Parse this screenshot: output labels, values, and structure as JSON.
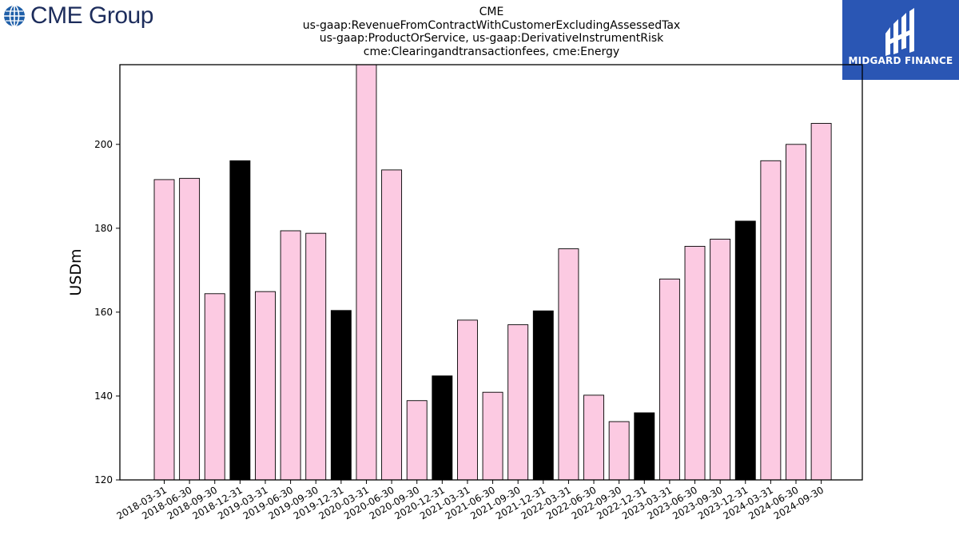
{
  "header": {
    "company_logo_text": "CME Group",
    "partner_logo_text": "MIDGARD FINANCE"
  },
  "colors": {
    "bar_default": "#fccae2",
    "bar_highlight": "#000000",
    "bar_edge": "#000000",
    "cme_brand": "#1d2d5c",
    "midgard_brand": "#2a56b4"
  },
  "chart_data": {
    "type": "bar",
    "title_lines": [
      "CME",
      "us-gaap:RevenueFromContractWithCustomerExcludingAssessedTax",
      "us-gaap:ProductOrService, us-gaap:DerivativeInstrumentRisk",
      "cme:Clearingandtransactionfees, cme:Energy"
    ],
    "xlabel": "",
    "ylabel": "USDm",
    "ylim": [
      120,
      219
    ],
    "yticks": [
      120,
      140,
      160,
      180,
      200
    ],
    "grid": false,
    "legend": "none",
    "categories": [
      "2018-03-31",
      "2018-06-30",
      "2018-09-30",
      "2018-12-31",
      "2019-03-31",
      "2019-06-30",
      "2019-09-30",
      "2019-12-31",
      "2020-03-31",
      "2020-06-30",
      "2020-09-30",
      "2020-12-31",
      "2021-03-31",
      "2021-06-30",
      "2021-09-30",
      "2021-12-31",
      "2022-03-31",
      "2022-06-30",
      "2022-09-30",
      "2022-12-31",
      "2023-03-31",
      "2023-06-30",
      "2023-09-30",
      "2023-12-31",
      "2024-03-31",
      "2024-06-30",
      "2024-09-30"
    ],
    "values": [
      191.6,
      191.9,
      164.4,
      196.1,
      164.9,
      179.4,
      178.8,
      160.4,
      219.0,
      193.9,
      138.9,
      144.8,
      158.1,
      140.9,
      157.0,
      160.3,
      175.1,
      140.2,
      133.9,
      136.0,
      167.9,
      175.7,
      177.4,
      181.7,
      196.1,
      200.0,
      205.0
    ],
    "highlight": [
      false,
      false,
      false,
      true,
      false,
      false,
      false,
      true,
      false,
      false,
      false,
      true,
      false,
      false,
      false,
      true,
      false,
      false,
      false,
      true,
      false,
      false,
      false,
      true,
      false,
      false,
      false
    ]
  }
}
